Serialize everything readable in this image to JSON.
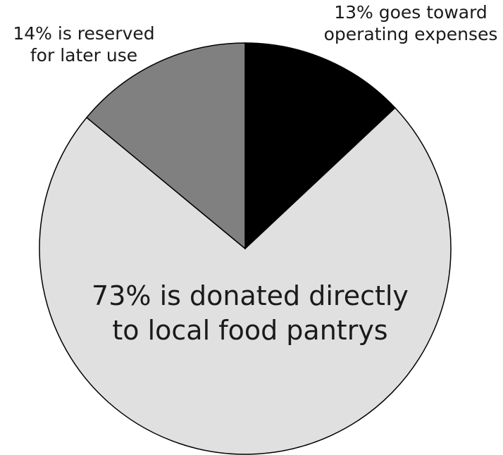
{
  "chart_data": {
    "type": "pie",
    "title": "",
    "slices": [
      {
        "value": 13,
        "lines": [
          "13% goes toward",
          "operating expenses"
        ],
        "color": "#000000"
      },
      {
        "value": 73,
        "lines": [
          "73% is donated directly",
          "to local food pantrys"
        ],
        "color": "#e0e0e0"
      },
      {
        "value": 14,
        "lines": [
          "14% is reserved",
          "for later use"
        ],
        "color": "#808080"
      }
    ],
    "start_angle": "12 o'clock",
    "direction": "clockwise",
    "legend": "none"
  }
}
